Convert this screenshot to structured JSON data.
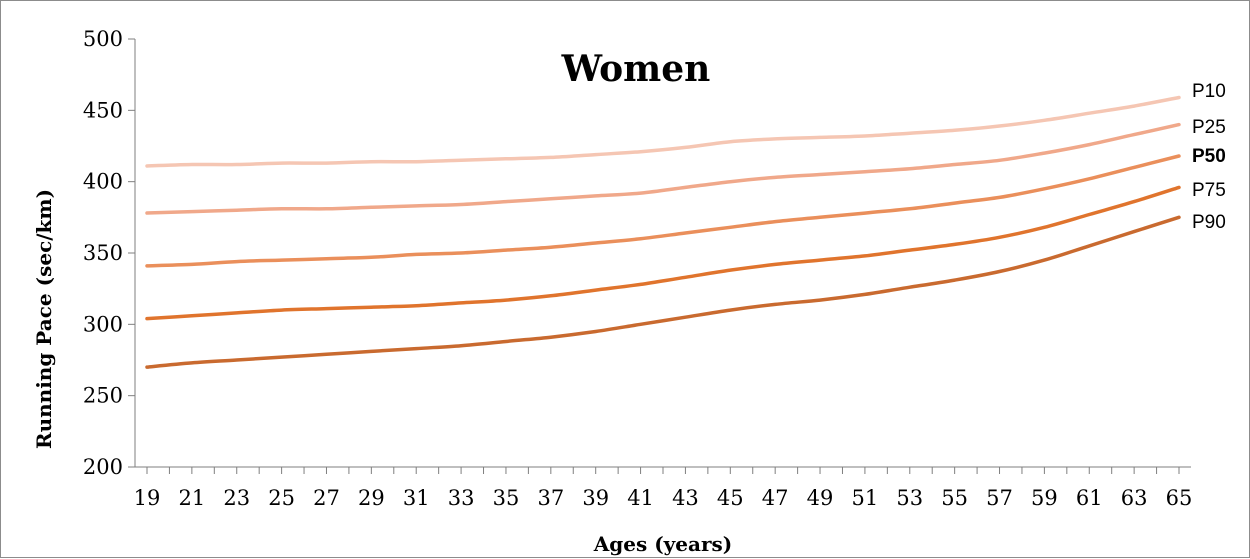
{
  "chart_data": {
    "type": "line",
    "title": "Women",
    "xlabel": "Ages (years)",
    "ylabel": "Running Pace (sec/km)",
    "xlim": [
      19,
      65
    ],
    "ylim": [
      200,
      500
    ],
    "ytick_labels": [
      "200",
      "250",
      "300",
      "350",
      "400",
      "450",
      "500"
    ],
    "xtick_labels": [
      "19",
      "21",
      "23",
      "25",
      "27",
      "29",
      "31",
      "33",
      "35",
      "37",
      "39",
      "41",
      "43",
      "45",
      "47",
      "49",
      "51",
      "53",
      "55",
      "57",
      "59",
      "61",
      "63",
      "65"
    ],
    "grid": false,
    "legend": "inline-right",
    "x": [
      19,
      21,
      23,
      25,
      27,
      29,
      31,
      33,
      35,
      37,
      39,
      41,
      43,
      45,
      47,
      49,
      51,
      53,
      55,
      57,
      59,
      61,
      63,
      65
    ],
    "series": [
      {
        "name": "P10",
        "bold": false,
        "color": "#f5c6b3",
        "values": [
          411,
          412,
          412,
          413,
          413,
          414,
          414,
          415,
          416,
          417,
          419,
          421,
          424,
          428,
          430,
          431,
          432,
          434,
          436,
          439,
          443,
          448,
          453,
          459
        ]
      },
      {
        "name": "P25",
        "bold": false,
        "color": "#f0a88a",
        "values": [
          378,
          379,
          380,
          381,
          381,
          382,
          383,
          384,
          386,
          388,
          390,
          392,
          396,
          400,
          403,
          405,
          407,
          409,
          412,
          415,
          420,
          426,
          433,
          440
        ]
      },
      {
        "name": "P50",
        "bold": true,
        "color": "#ea8f5b",
        "values": [
          341,
          342,
          344,
          345,
          346,
          347,
          349,
          350,
          352,
          354,
          357,
          360,
          364,
          368,
          372,
          375,
          378,
          381,
          385,
          389,
          395,
          402,
          410,
          418
        ]
      },
      {
        "name": "P75",
        "bold": false,
        "color": "#e0742d",
        "values": [
          304,
          306,
          308,
          310,
          311,
          312,
          313,
          315,
          317,
          320,
          324,
          328,
          333,
          338,
          342,
          345,
          348,
          352,
          356,
          361,
          368,
          377,
          386,
          396
        ]
      },
      {
        "name": "P90",
        "bold": false,
        "color": "#c96a2f",
        "values": [
          270,
          273,
          275,
          277,
          279,
          281,
          283,
          285,
          288,
          291,
          295,
          300,
          305,
          310,
          314,
          317,
          321,
          326,
          331,
          337,
          345,
          355,
          365,
          375
        ]
      }
    ]
  }
}
